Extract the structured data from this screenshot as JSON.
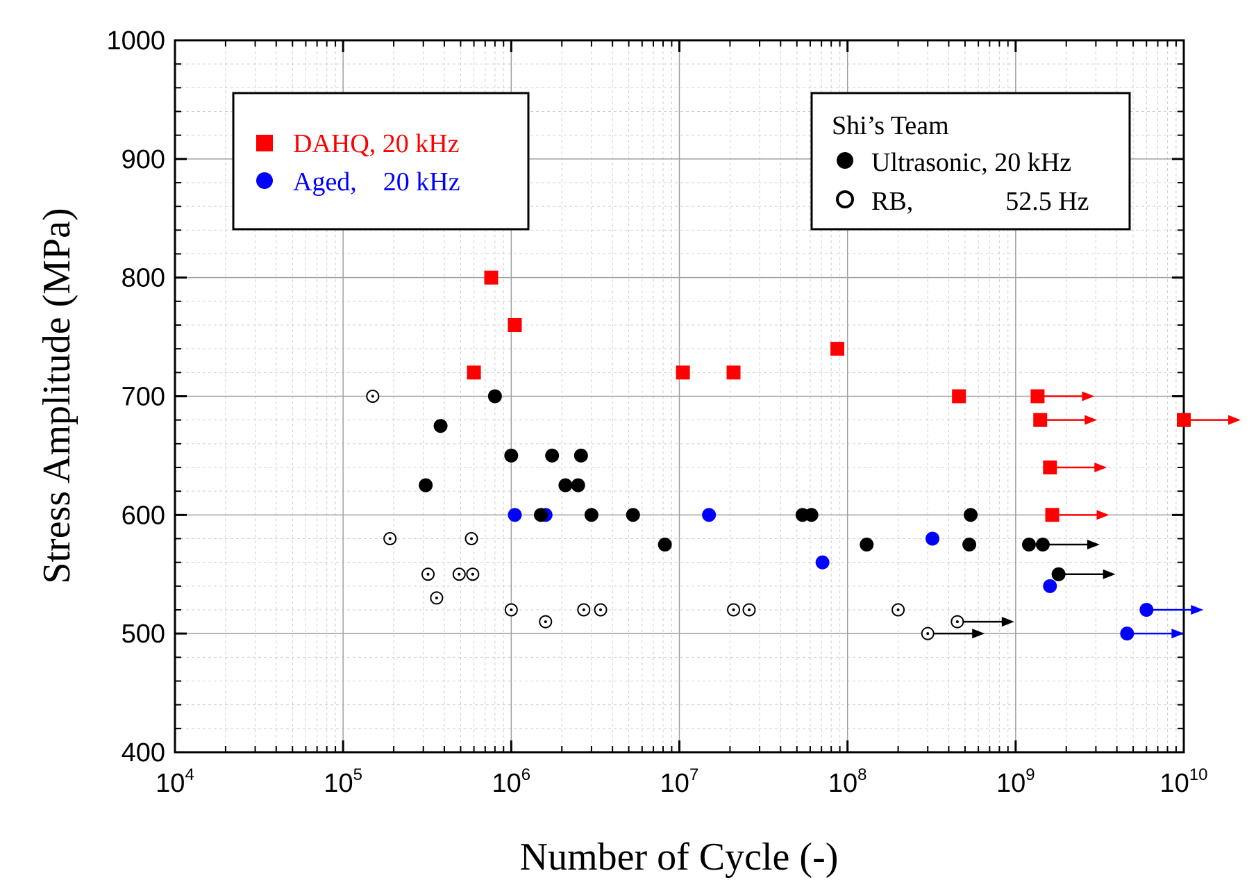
{
  "chart_data": {
    "type": "scatter",
    "title": "",
    "xlabel": "Number of Cycle (-)",
    "ylabel": "Stress Amplitude (MPa)",
    "xscale": "log",
    "xlim": [
      10000,
      10000000000
    ],
    "ylim": [
      400,
      1000
    ],
    "grid": true,
    "x_ticks": [
      {
        "value": 10000,
        "base": "10",
        "exp": "4"
      },
      {
        "value": 100000,
        "base": "10",
        "exp": "5"
      },
      {
        "value": 1000000,
        "base": "10",
        "exp": "6"
      },
      {
        "value": 10000000,
        "base": "10",
        "exp": "7"
      },
      {
        "value": 100000000,
        "base": "10",
        "exp": "8"
      },
      {
        "value": 1000000000,
        "base": "10",
        "exp": "9"
      },
      {
        "value": 10000000000,
        "base": "10",
        "exp": "10"
      }
    ],
    "y_ticks": [
      "400",
      "500",
      "600",
      "700",
      "800",
      "900",
      "1000"
    ],
    "legends": [
      {
        "position": "top-left",
        "title": "",
        "entries": [
          {
            "label": "DAHQ, 20 kHz",
            "marker": "square",
            "color": "#ff0000"
          },
          {
            "label": "Aged,    20 kHz",
            "marker": "circle",
            "color": "#0000ff"
          }
        ]
      },
      {
        "position": "top-right",
        "title": "Shi’s Team",
        "entries": [
          {
            "label": "Ultrasonic, 20 kHz",
            "marker": "circle",
            "color": "#000000"
          },
          {
            "label": "RB,              52.5 Hz",
            "marker": "open-circle",
            "color": "#000000"
          }
        ]
      }
    ],
    "series": [
      {
        "name": "DAHQ, 20 kHz",
        "marker": "square",
        "color": "#ff0000",
        "points": [
          {
            "x": 600000,
            "y": 720
          },
          {
            "x": 760000,
            "y": 800
          },
          {
            "x": 1050000,
            "y": 760
          },
          {
            "x": 10500000,
            "y": 720
          },
          {
            "x": 21000000,
            "y": 720
          },
          {
            "x": 87000000,
            "y": 740
          },
          {
            "x": 460000000,
            "y": 700
          },
          {
            "x": 1350000000,
            "y": 700,
            "runout": true
          },
          {
            "x": 1400000000,
            "y": 680,
            "runout": true
          },
          {
            "x": 1600000000,
            "y": 640,
            "runout": true
          },
          {
            "x": 1650000000,
            "y": 600,
            "runout": true
          },
          {
            "x": 10000000000,
            "y": 680,
            "runout": true
          }
        ]
      },
      {
        "name": "Aged, 20 kHz",
        "marker": "circle",
        "color": "#0000ff",
        "points": [
          {
            "x": 1050000,
            "y": 600
          },
          {
            "x": 1600000,
            "y": 600
          },
          {
            "x": 15000000,
            "y": 600
          },
          {
            "x": 71000000,
            "y": 560
          },
          {
            "x": 320000000,
            "y": 580
          },
          {
            "x": 1600000000,
            "y": 540
          },
          {
            "x": 6000000000,
            "y": 520,
            "runout": true
          },
          {
            "x": 4600000000,
            "y": 500,
            "runout": true
          }
        ]
      },
      {
        "name": "Ultrasonic, 20 kHz",
        "marker": "circle",
        "color": "#000000",
        "points": [
          {
            "x": 310000,
            "y": 625
          },
          {
            "x": 380000,
            "y": 675
          },
          {
            "x": 800000,
            "y": 700
          },
          {
            "x": 1000000,
            "y": 650
          },
          {
            "x": 1500000,
            "y": 600
          },
          {
            "x": 1750000,
            "y": 650
          },
          {
            "x": 2100000,
            "y": 625
          },
          {
            "x": 2500000,
            "y": 625
          },
          {
            "x": 2600000,
            "y": 650
          },
          {
            "x": 3000000,
            "y": 600
          },
          {
            "x": 5300000,
            "y": 600
          },
          {
            "x": 8200000,
            "y": 575
          },
          {
            "x": 54000000,
            "y": 600
          },
          {
            "x": 61000000,
            "y": 600
          },
          {
            "x": 130000000,
            "y": 575
          },
          {
            "x": 540000000,
            "y": 600
          },
          {
            "x": 530000000,
            "y": 575
          },
          {
            "x": 1200000000,
            "y": 575
          },
          {
            "x": 1450000000,
            "y": 575,
            "runout": true
          },
          {
            "x": 1800000000,
            "y": 550,
            "runout": true
          }
        ]
      },
      {
        "name": "RB, 52.5 Hz",
        "marker": "open-circle",
        "color": "#000000",
        "points": [
          {
            "x": 150000,
            "y": 700
          },
          {
            "x": 190000,
            "y": 580
          },
          {
            "x": 580000,
            "y": 580
          },
          {
            "x": 320000,
            "y": 550
          },
          {
            "x": 490000,
            "y": 550
          },
          {
            "x": 590000,
            "y": 550
          },
          {
            "x": 360000,
            "y": 530
          },
          {
            "x": 1000000,
            "y": 520
          },
          {
            "x": 1600000,
            "y": 510
          },
          {
            "x": 2700000,
            "y": 520
          },
          {
            "x": 3400000,
            "y": 520
          },
          {
            "x": 21000000,
            "y": 520
          },
          {
            "x": 26000000,
            "y": 520
          },
          {
            "x": 200000000,
            "y": 520
          },
          {
            "x": 300000000,
            "y": 500,
            "runout": true
          },
          {
            "x": 450000000,
            "y": 510,
            "runout": true
          }
        ]
      }
    ]
  }
}
